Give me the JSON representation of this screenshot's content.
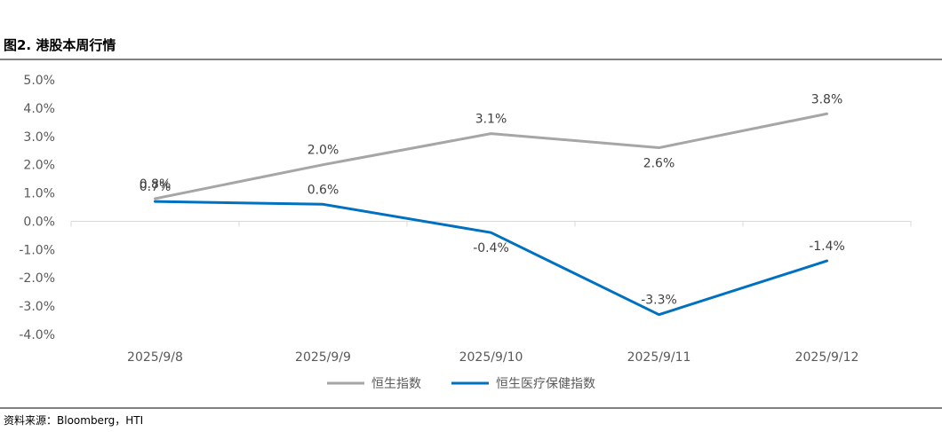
{
  "figure": {
    "title": "图2. 港股本周行情",
    "source": "资料来源：Bloomberg，HTI"
  },
  "chart_data": {
    "type": "line",
    "categories": [
      "2025/9/8",
      "2025/9/9",
      "2025/9/10",
      "2025/9/11",
      "2025/9/12"
    ],
    "series": [
      {
        "name": "恒生指数",
        "values": [
          0.8,
          2.0,
          3.1,
          2.6,
          3.8
        ],
        "labels": [
          "0.8%",
          "2.0%",
          "3.1%",
          "2.6%",
          "3.8%"
        ],
        "label_positions": [
          "above",
          "above",
          "above",
          "below",
          "above"
        ],
        "color": "#A6A6A6"
      },
      {
        "name": "恒生医疗保健指数",
        "values": [
          0.7,
          0.6,
          -0.4,
          -3.3,
          -1.4
        ],
        "labels": [
          "0.7%",
          "0.6%",
          "-0.4%",
          "-3.3%",
          "-1.4%"
        ],
        "label_positions": [
          "above",
          "above",
          "below",
          "above",
          "above"
        ],
        "color": "#0070C0"
      }
    ],
    "y_ticks": [
      "5.0%",
      "4.0%",
      "3.0%",
      "2.0%",
      "1.0%",
      "0.0%",
      "-1.0%",
      "-2.0%",
      "-3.0%",
      "-4.0%"
    ],
    "y_tick_values": [
      5,
      4,
      3,
      2,
      1,
      0,
      -1,
      -2,
      -3,
      -4
    ],
    "ylim": [
      -4,
      5
    ],
    "xlabel": "",
    "ylabel": "",
    "grid": false,
    "legend": "bottom-center"
  }
}
